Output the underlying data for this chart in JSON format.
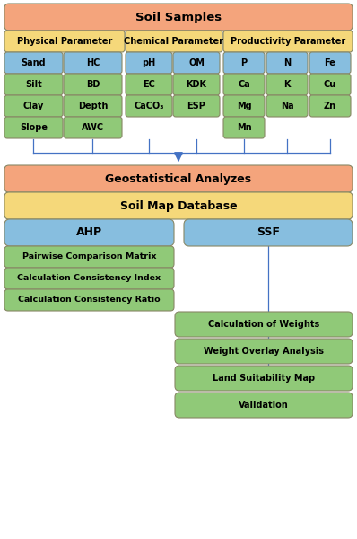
{
  "bg_color": "#ffffff",
  "colors": {
    "salmon": "#F4A47C",
    "yellow": "#F5D87A",
    "green": "#90C978",
    "blue_box": "#87BEDF",
    "blue_line": "#4472C4",
    "border": "#999966"
  },
  "soil_samples_label": "Soil Samples",
  "param_headers": [
    "Physical Parameter",
    "Chemical Parameter",
    "Productivity Parameter"
  ],
  "physical_params": [
    [
      "Sand",
      "HC"
    ],
    [
      "Silt",
      "BD"
    ],
    [
      "Clay",
      "Depth"
    ],
    [
      "Slope",
      "AWC"
    ]
  ],
  "chemical_params": [
    [
      "pH",
      "OM"
    ],
    [
      "EC",
      "KDK"
    ],
    [
      "CaCO₃",
      "ESP"
    ]
  ],
  "productivity_row1": [
    "P",
    "N",
    "Fe"
  ],
  "productivity_row2": [
    "Ca",
    "K",
    "Cu"
  ],
  "productivity_row3": [
    "Mg",
    "Na",
    "Zn"
  ],
  "productivity_row4": [
    "Mn"
  ],
  "geo_label": "Geostatistical Analyzes",
  "soil_map_label": "Soil Map Database",
  "ahp_label": "AHP",
  "ssf_label": "SSF",
  "ahp_steps": [
    "Pairwise Comparison Matrix",
    "Calculation Consistency Index",
    "Calculation Consistency Ratio"
  ],
  "shared_steps": [
    "Calculation of Weights",
    "Weight Overlay Analysis",
    "Land Suitability Map",
    "Validation"
  ],
  "figw": 3.98,
  "figh": 6.0,
  "dpi": 100
}
